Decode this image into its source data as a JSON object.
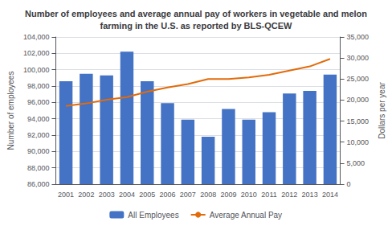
{
  "chart_data": {
    "type": "bar",
    "title": "Number of employees and average annual pay of workers in vegetable and melon\nfarming in the U.S. as reported by BLS-QCEW",
    "categories": [
      "2001",
      "2002",
      "2003",
      "2004",
      "2005",
      "2006",
      "2007",
      "2008",
      "2009",
      "2010",
      "2011",
      "2012",
      "2013",
      "2014"
    ],
    "series": [
      {
        "name": "All Employees",
        "type": "bar",
        "color": "#4472C4",
        "values": [
          98600,
          99500,
          99300,
          102200,
          98600,
          95900,
          93900,
          91800,
          95200,
          93900,
          94800,
          97100,
          97400,
          99400
        ]
      },
      {
        "name": "Average Annual Pay",
        "type": "line",
        "color": "#E26B0A",
        "axis": "y2",
        "values": [
          18600,
          19200,
          20100,
          20700,
          22000,
          23000,
          23800,
          25000,
          25000,
          25400,
          26000,
          27000,
          28000,
          29800
        ]
      }
    ],
    "ylabel": "Number of employees",
    "y2label": "Dollars per year",
    "ylim": [
      86000,
      104000
    ],
    "yticks": [
      {
        "value": 86000,
        "label": "86,000"
      },
      {
        "value": 88000,
        "label": "88,000"
      },
      {
        "value": 90000,
        "label": "90,000"
      },
      {
        "value": 92000,
        "label": "92,000"
      },
      {
        "value": 94000,
        "label": "94,000"
      },
      {
        "value": 96000,
        "label": "96,000"
      },
      {
        "value": 98000,
        "label": "98,000"
      },
      {
        "value": 100000,
        "label": "100,000"
      },
      {
        "value": 102000,
        "label": "102,000"
      },
      {
        "value": 104000,
        "label": "104,000"
      }
    ],
    "y2lim": [
      0,
      35000
    ],
    "y2ticks": [
      0,
      {
        "value": 5000,
        "label": "5,000"
      },
      {
        "value": 10000,
        "label": "10,000"
      },
      {
        "value": 15000,
        "label": "15,000"
      },
      {
        "value": 20000,
        "label": "20,000"
      },
      {
        "value": 25000,
        "label": "25,000"
      },
      {
        "value": 30000,
        "label": "30,000"
      },
      {
        "value": 35000,
        "label": "35,000"
      }
    ],
    "grid": true,
    "legend": "bottom"
  }
}
